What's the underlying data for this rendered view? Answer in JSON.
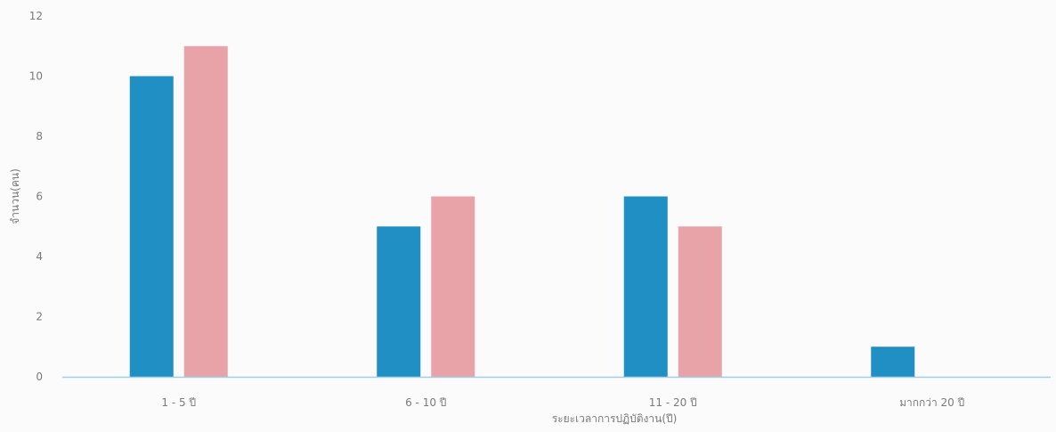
{
  "chart_data": {
    "type": "bar",
    "title": "",
    "xlabel": "ระยะเวลาการปฏิบัติงาน(ปี)",
    "ylabel": "จำนวน(คน)",
    "categories": [
      "1 - 5 ปี",
      "6 - 10 ปี",
      "11 - 20 ปี",
      "มากกว่า 20 ปี"
    ],
    "series": [
      {
        "color": "#1f8fc4",
        "values": [
          10,
          5,
          6,
          1
        ]
      },
      {
        "color": "#e8a3a8",
        "values": [
          11,
          6,
          5,
          0
        ]
      }
    ],
    "yticks": [
      "0",
      "2",
      "4",
      "6",
      "8",
      "10",
      "12"
    ],
    "ylim": [
      0,
      12
    ],
    "grid": false,
    "axis_color": "#9fd0e3"
  }
}
